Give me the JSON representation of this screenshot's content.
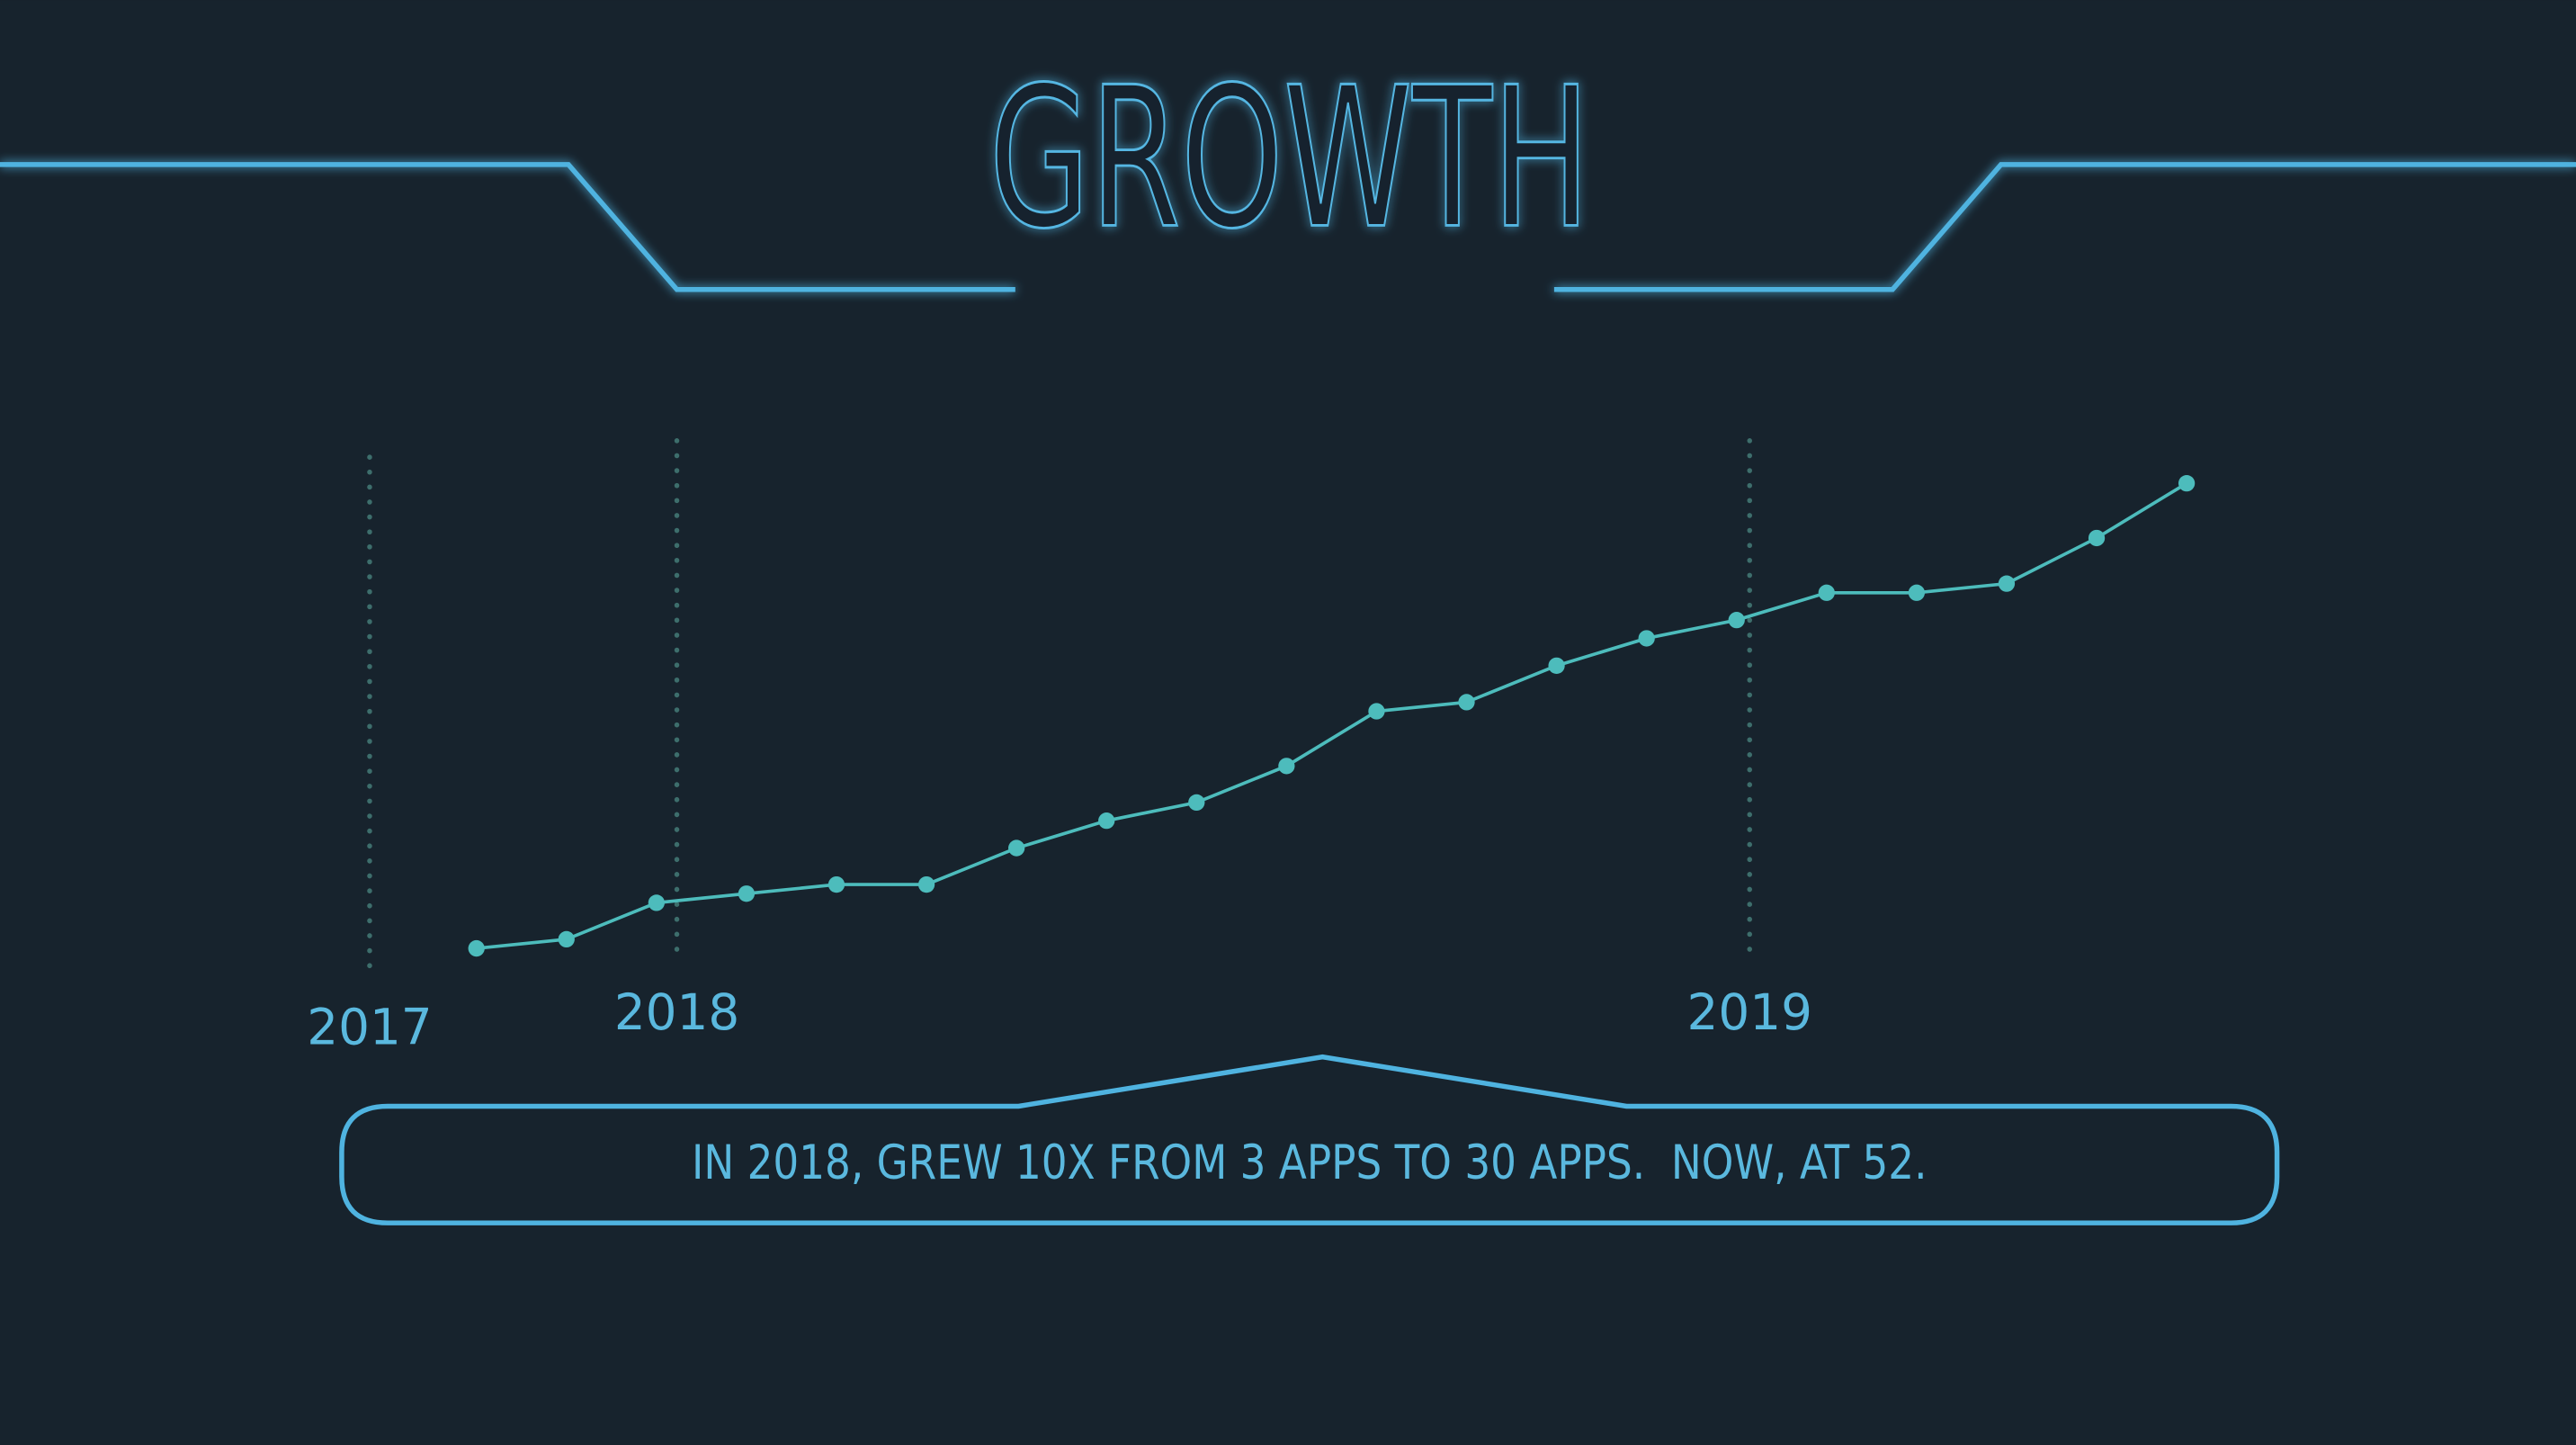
{
  "chart_data": {
    "type": "line",
    "title": "GROWTH",
    "categories": [
      null,
      null,
      null,
      null,
      null,
      null,
      null,
      null,
      null,
      null,
      null,
      null,
      null,
      null,
      null,
      null,
      null,
      null,
      null,
      null
    ],
    "values": [
      1,
      2,
      6,
      7,
      8,
      8,
      12,
      15,
      17,
      21,
      27,
      28,
      32,
      35,
      37,
      40,
      40,
      41,
      46,
      52
    ],
    "color": "#4dbcbc",
    "ylim": [
      0,
      55
    ],
    "year_markers": [
      "2017",
      "2018",
      "2019"
    ],
    "annotation": "IN 2018, GREW 10X FROM 3 APPS TO 30 APPS.  NOW, AT 52."
  }
}
